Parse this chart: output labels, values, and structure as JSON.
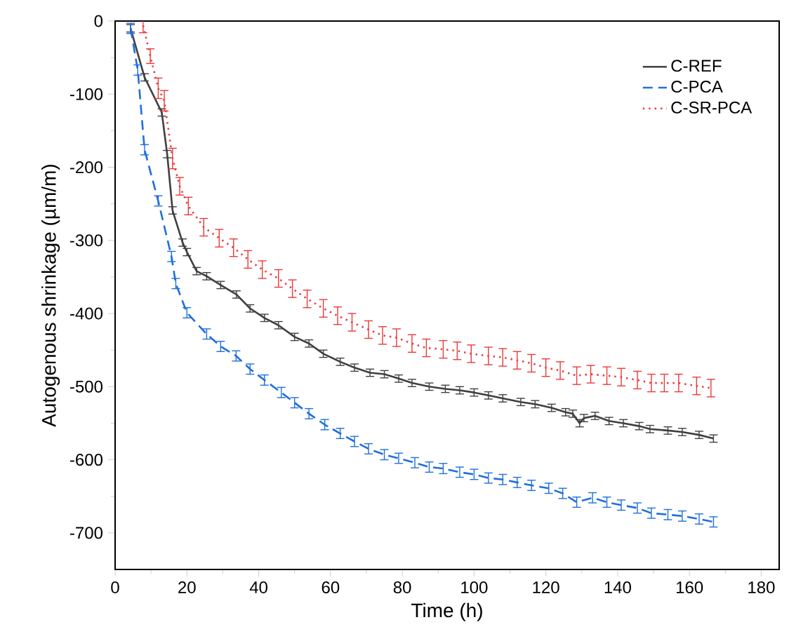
{
  "chart_data": {
    "type": "line",
    "xlabel": "Time (h)",
    "ylabel": "Autogenous shrinkage (µm/m)",
    "xlim": [
      0,
      185
    ],
    "ylim": [
      -750,
      0
    ],
    "xticks": [
      0,
      20,
      40,
      60,
      80,
      100,
      120,
      140,
      160,
      180
    ],
    "yticks": [
      0,
      -100,
      -200,
      -300,
      -400,
      -500,
      -600,
      -700
    ],
    "legend": "top right",
    "grid": false,
    "series": [
      {
        "name": "C-REF",
        "color": "#404040",
        "line_style": "solid",
        "x": [
          4.3,
          8.2,
          13,
          14.5,
          16,
          18.8,
          20,
          22.7,
          25.5,
          29.4,
          33.8,
          37.6,
          41.6,
          45.5,
          50,
          54,
          58,
          62.7,
          66.7,
          71,
          75,
          79,
          82.7,
          87.5,
          92,
          96,
          100,
          104,
          108,
          113,
          117,
          121.6,
          125.5,
          127.5,
          129.4,
          130.6,
          133.7,
          137.6,
          141.6,
          146,
          149,
          154,
          158,
          162.7,
          166.7
        ],
        "values": [
          -10,
          -77,
          -125,
          -182,
          -259,
          -303,
          -316,
          -342,
          -349,
          -361,
          -374,
          -393,
          -406,
          -416,
          -432,
          -441,
          -455,
          -466,
          -474,
          -481,
          -483,
          -489,
          -495,
          -500,
          -503,
          -505,
          -508,
          -512,
          -516,
          -521,
          -524,
          -529,
          -535,
          -537,
          -550,
          -543,
          -540,
          -547,
          -550,
          -554,
          -558,
          -560,
          -562,
          -566,
          -571
        ],
        "errors": [
          5,
          5,
          5,
          5,
          5,
          5,
          5,
          5,
          5,
          5,
          5,
          5,
          5,
          5,
          5,
          5,
          5,
          5,
          5,
          5,
          5,
          5,
          5,
          5,
          5,
          5,
          5,
          5,
          5,
          5,
          5,
          5,
          5,
          5,
          5,
          5,
          5,
          5,
          5,
          5,
          5,
          5,
          5,
          5,
          5
        ]
      },
      {
        "name": "C-PCA",
        "color": "#1f6fdc",
        "line_style": "dashed",
        "x": [
          4.3,
          6.3,
          8.2,
          12,
          15.7,
          16.9,
          20,
          25.5,
          29.4,
          33.7,
          37.6,
          41.6,
          46.3,
          50,
          54,
          58.4,
          62.7,
          66.7,
          70.6,
          75,
          79,
          83.5,
          87.5,
          91.4,
          96,
          100,
          104,
          108,
          112,
          116,
          120.8,
          124.7,
          128.6,
          133,
          137,
          141,
          145.5,
          149.4,
          154,
          158,
          162.7,
          166.7
        ],
        "values": [
          -10,
          -67,
          -176,
          -246,
          -322,
          -359,
          -399,
          -428,
          -445,
          -458,
          -476,
          -491,
          -508,
          -522,
          -537,
          -552,
          -564,
          -575,
          -585,
          -593,
          -598,
          -604,
          -610,
          -612,
          -617,
          -620,
          -625,
          -627,
          -631,
          -635,
          -639,
          -646,
          -658,
          -652,
          -658,
          -662,
          -666,
          -673,
          -675,
          -677,
          -681,
          -685
        ],
        "errors": [
          7,
          7,
          7,
          7,
          7,
          7,
          7,
          7,
          7,
          7,
          7,
          7,
          7,
          7,
          7,
          7,
          7,
          7,
          7,
          7,
          7,
          7,
          7,
          7,
          7,
          7,
          7,
          7,
          7,
          7,
          7,
          7,
          7,
          7,
          7,
          7,
          7,
          7,
          7,
          7,
          7,
          7
        ]
      },
      {
        "name": "C-SR-PCA",
        "color": "#e83a3a",
        "line_style": "dotted",
        "x": [
          7.8,
          9.8,
          12,
          13.7,
          16,
          18,
          20.4,
          24.7,
          29,
          33,
          37,
          41,
          45.5,
          49.4,
          53.5,
          58,
          62,
          66,
          70.6,
          74.5,
          78.4,
          82.7,
          86.7,
          91.4,
          95.3,
          99.2,
          104,
          108,
          112,
          116,
          120,
          124,
          128.6,
          132.5,
          137,
          141,
          145.5,
          149.4,
          153,
          157,
          162,
          166
        ],
        "values": [
          -6,
          -48,
          -92,
          -109,
          -188,
          -226,
          -253,
          -282,
          -297,
          -310,
          -326,
          -340,
          -352,
          -366,
          -380,
          -393,
          -403,
          -412,
          -422,
          -430,
          -433,
          -441,
          -447,
          -449,
          -451,
          -455,
          -458,
          -460,
          -464,
          -468,
          -474,
          -478,
          -485,
          -483,
          -485,
          -487,
          -491,
          -495,
          -495,
          -495,
          -499,
          -502
        ],
        "errors": [
          10,
          10,
          14,
          14,
          14,
          12,
          12,
          12,
          12,
          12,
          12,
          12,
          12,
          12,
          12,
          12,
          12,
          12,
          12,
          12,
          12,
          12,
          12,
          12,
          12,
          12,
          12,
          12,
          12,
          12,
          12,
          12,
          12,
          12,
          12,
          12,
          12,
          12,
          12,
          12,
          12,
          12
        ]
      }
    ]
  }
}
